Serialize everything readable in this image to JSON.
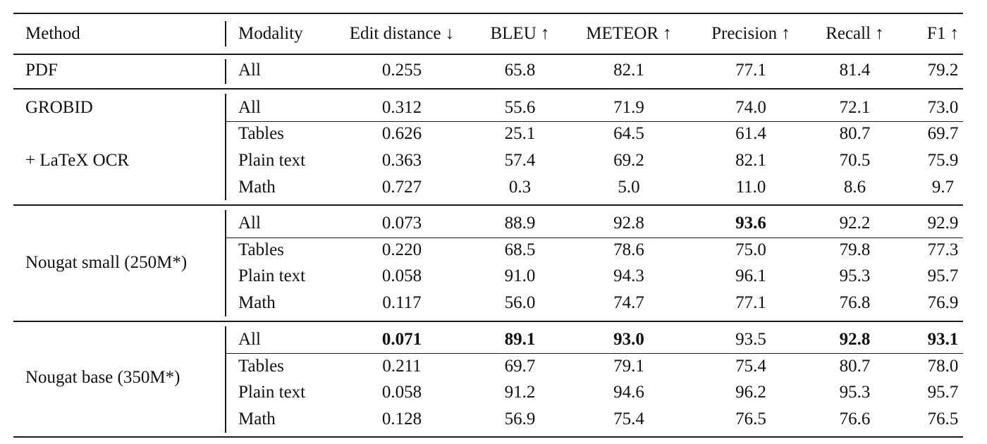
{
  "table": {
    "headers": [
      "Method",
      "Modality",
      "Edit distance ↓",
      "BLEU ↑",
      "METEOR ↑",
      "Precision ↑",
      "Recall ↑",
      "F1 ↑"
    ],
    "groups": [
      {
        "method_lines": [
          "PDF"
        ],
        "rows": [
          {
            "modality": "All",
            "values": [
              "0.255",
              "65.8",
              "82.1",
              "77.1",
              "81.4",
              "79.2"
            ],
            "bold": [
              false,
              false,
              false,
              false,
              false,
              false
            ]
          }
        ]
      },
      {
        "method_lines": [
          "GROBID",
          "+ LaTeX OCR"
        ],
        "rows": [
          {
            "modality": "All",
            "values": [
              "0.312",
              "55.6",
              "71.9",
              "74.0",
              "72.1",
              "73.0"
            ],
            "bold": [
              false,
              false,
              false,
              false,
              false,
              false
            ]
          },
          {
            "modality": "Tables",
            "values": [
              "0.626",
              "25.1",
              "64.5",
              "61.4",
              "80.7",
              "69.7"
            ],
            "bold": [
              false,
              false,
              false,
              false,
              false,
              false
            ]
          },
          {
            "modality": "Plain text",
            "values": [
              "0.363",
              "57.4",
              "69.2",
              "82.1",
              "70.5",
              "75.9"
            ],
            "bold": [
              false,
              false,
              false,
              false,
              false,
              false
            ]
          },
          {
            "modality": "Math",
            "values": [
              "0.727",
              "0.3",
              "5.0",
              "11.0",
              "8.6",
              "9.7"
            ],
            "bold": [
              false,
              false,
              false,
              false,
              false,
              false
            ]
          }
        ]
      },
      {
        "method_lines": [
          "Nougat small (250M*)"
        ],
        "rows": [
          {
            "modality": "All",
            "values": [
              "0.073",
              "88.9",
              "92.8",
              "93.6",
              "92.2",
              "92.9"
            ],
            "bold": [
              false,
              false,
              false,
              true,
              false,
              false
            ]
          },
          {
            "modality": "Tables",
            "values": [
              "0.220",
              "68.5",
              "78.6",
              "75.0",
              "79.8",
              "77.3"
            ],
            "bold": [
              false,
              false,
              false,
              false,
              false,
              false
            ]
          },
          {
            "modality": "Plain text",
            "values": [
              "0.058",
              "91.0",
              "94.3",
              "96.1",
              "95.3",
              "95.7"
            ],
            "bold": [
              false,
              false,
              false,
              false,
              false,
              false
            ]
          },
          {
            "modality": "Math",
            "values": [
              "0.117",
              "56.0",
              "74.7",
              "77.1",
              "76.8",
              "76.9"
            ],
            "bold": [
              false,
              false,
              false,
              false,
              false,
              false
            ]
          }
        ]
      },
      {
        "method_lines": [
          "Nougat base (350M*)"
        ],
        "rows": [
          {
            "modality": "All",
            "values": [
              "0.071",
              "89.1",
              "93.0",
              "93.5",
              "92.8",
              "93.1"
            ],
            "bold": [
              true,
              true,
              true,
              false,
              true,
              true
            ]
          },
          {
            "modality": "Tables",
            "values": [
              "0.211",
              "69.7",
              "79.1",
              "75.4",
              "80.7",
              "78.0"
            ],
            "bold": [
              false,
              false,
              false,
              false,
              false,
              false
            ]
          },
          {
            "modality": "Plain text",
            "values": [
              "0.058",
              "91.2",
              "94.6",
              "96.2",
              "95.3",
              "95.7"
            ],
            "bold": [
              false,
              false,
              false,
              false,
              false,
              false
            ]
          },
          {
            "modality": "Math",
            "values": [
              "0.128",
              "56.9",
              "75.4",
              "76.5",
              "76.6",
              "76.5"
            ],
            "bold": [
              false,
              false,
              false,
              false,
              false,
              false
            ]
          }
        ]
      }
    ]
  }
}
